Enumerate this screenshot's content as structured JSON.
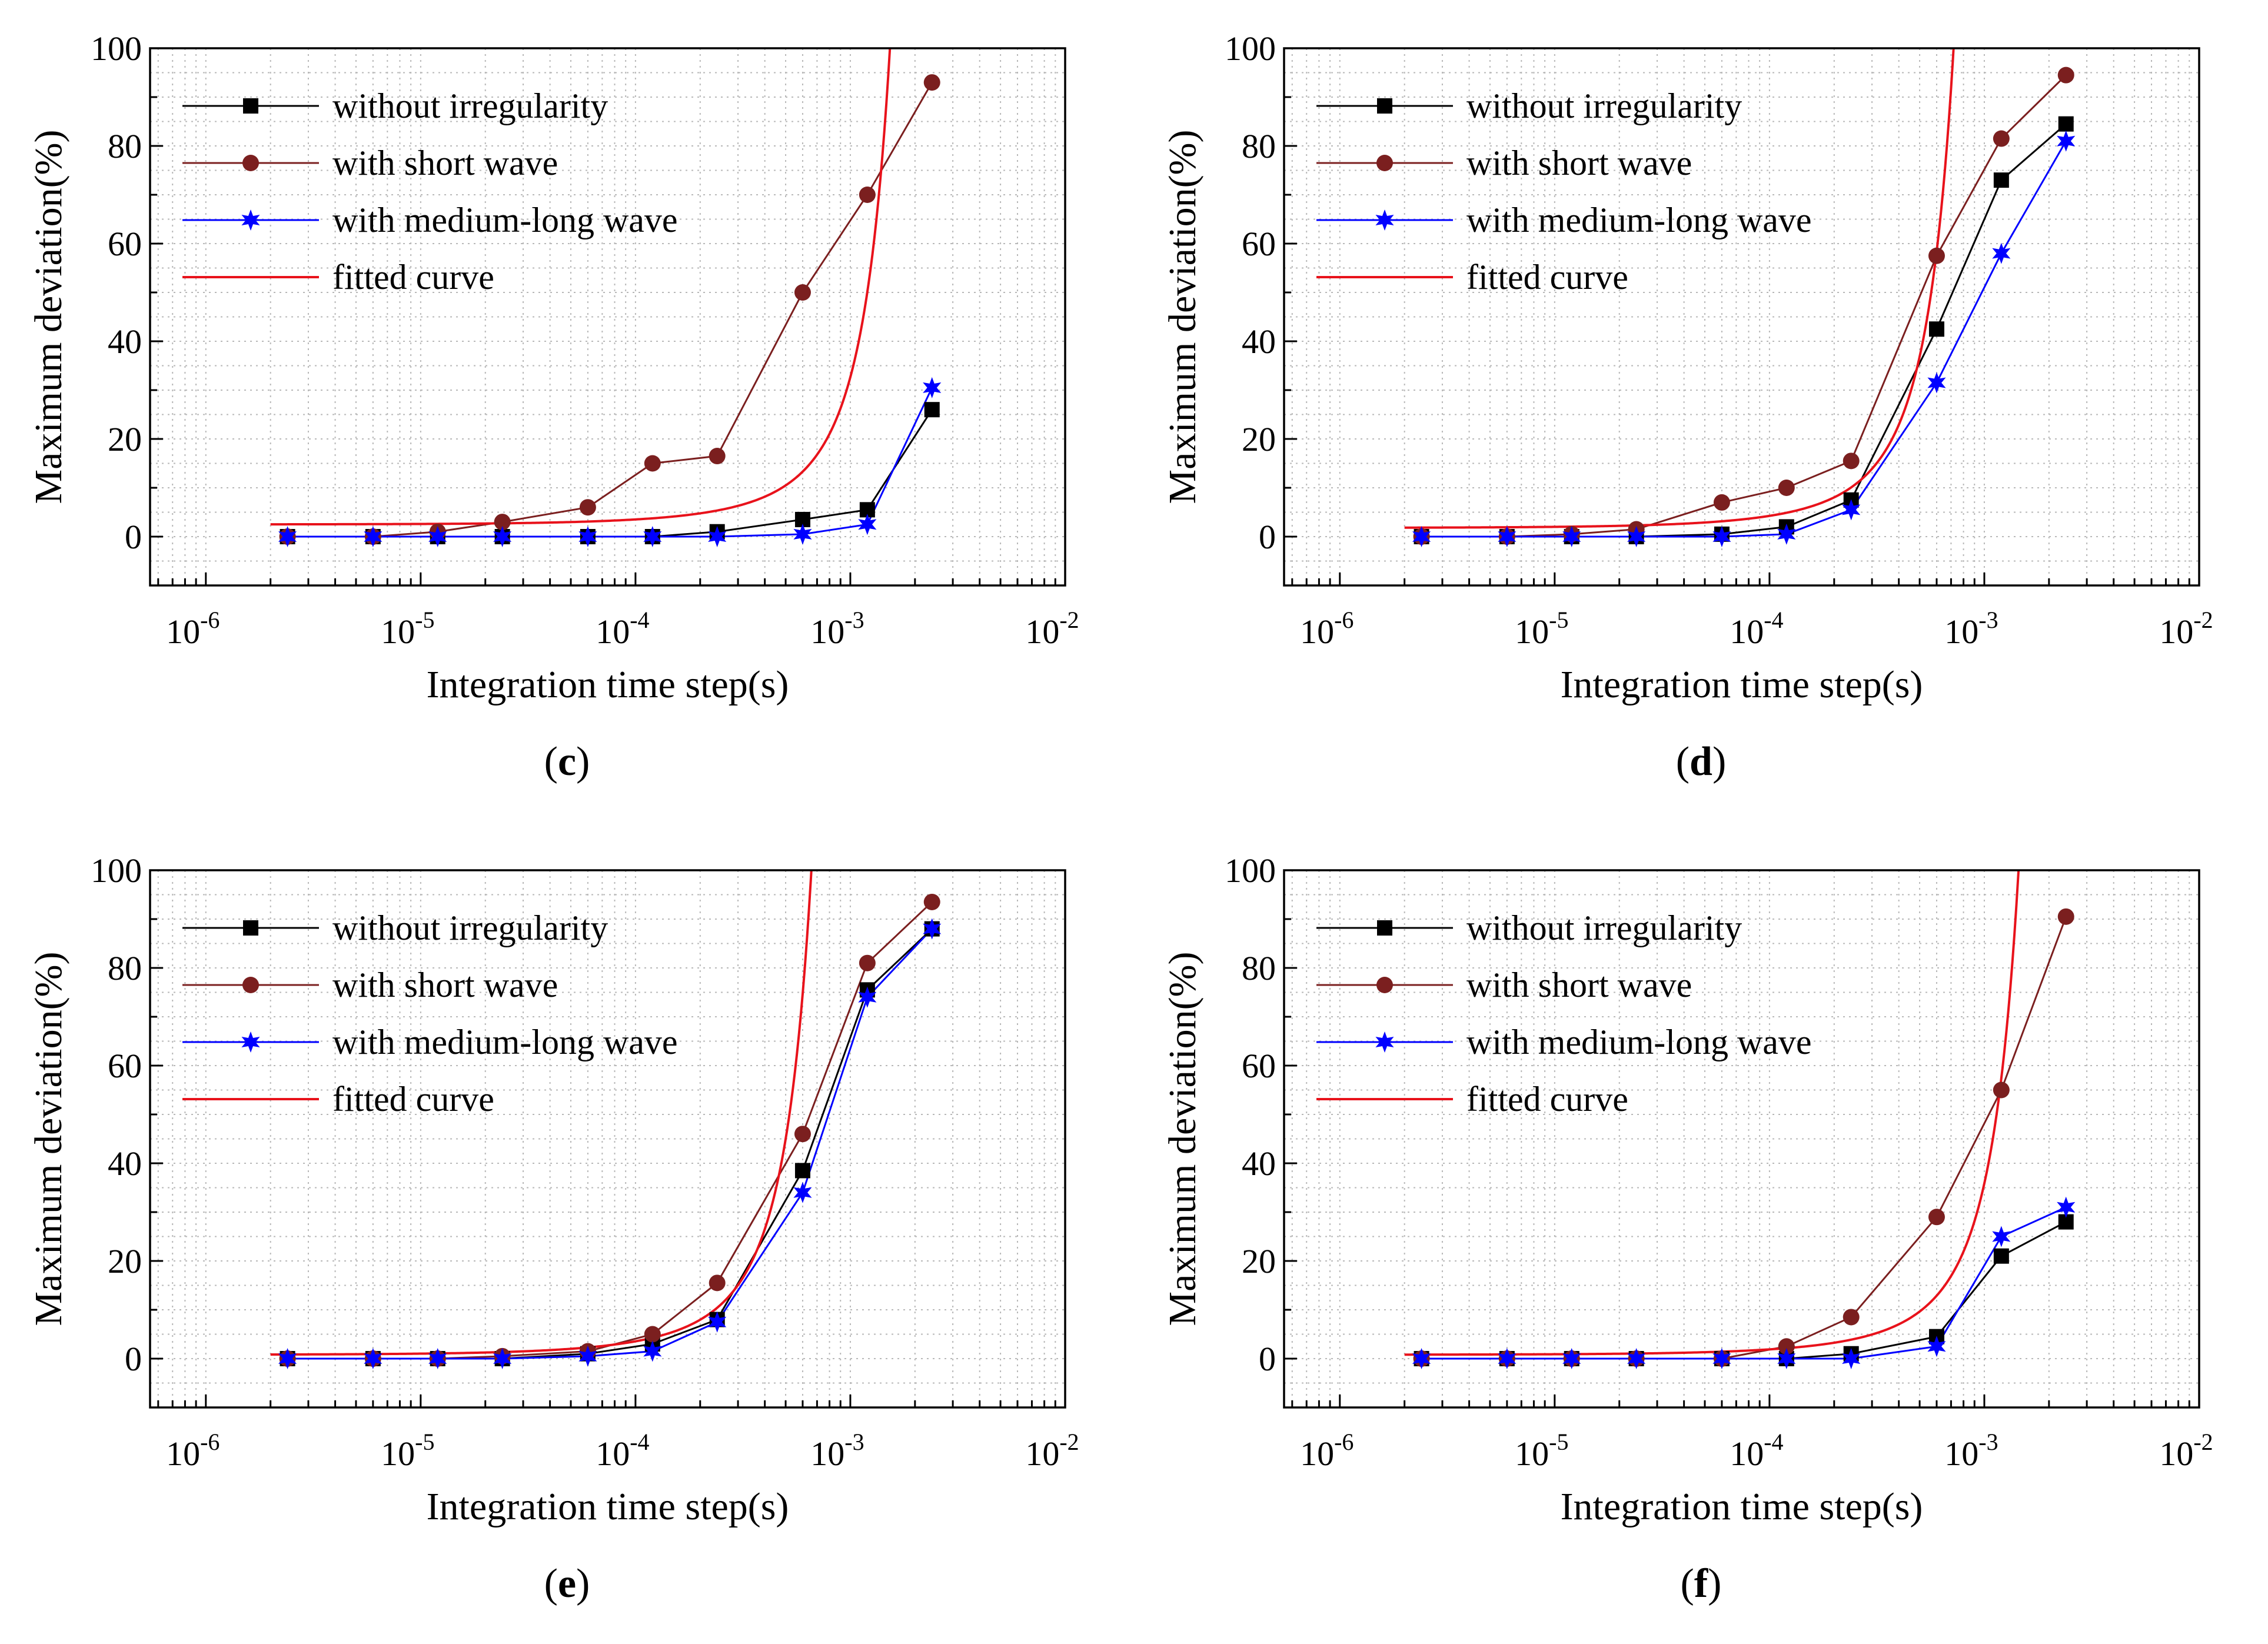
{
  "figure": {
    "panels_order": [
      "c",
      "d",
      "e",
      "f"
    ]
  },
  "chart_data": [
    {
      "id": "c",
      "caption": "c",
      "type": "line",
      "xscale": "log",
      "xlabel": "Integration time step(s)",
      "ylabel": "Maximum deviation(%)",
      "xlim": [
        5.5e-07,
        0.01
      ],
      "ylim": [
        -10,
        100
      ],
      "x_ticks": [
        {
          "base": "10",
          "exp": "-6",
          "value": 1e-06
        },
        {
          "base": "10",
          "exp": "-5",
          "value": 1e-05
        },
        {
          "base": "10",
          "exp": "-4",
          "value": 0.0001
        },
        {
          "base": "10",
          "exp": "-3",
          "value": 0.001
        },
        {
          "base": "10",
          "exp": "-2",
          "value": 0.01
        }
      ],
      "y_ticks": [
        "0",
        "20",
        "40",
        "60",
        "80",
        "100"
      ],
      "legend_position": "top-left",
      "x": [
        2.4e-06,
        6e-06,
        1.2e-05,
        2.4e-05,
        6e-05,
        0.00012,
        0.00024,
        0.0006,
        0.0012,
        0.0024
      ],
      "series": [
        {
          "name": "without irregularity",
          "color": "#000000",
          "marker": "square",
          "values": [
            0,
            0,
            0,
            0,
            0,
            0,
            1,
            3.5,
            5.5,
            26
          ]
        },
        {
          "name": "with short wave",
          "color": "#7b1f1f",
          "marker": "circle",
          "values": [
            0,
            0,
            1,
            3,
            6,
            15,
            16.5,
            50,
            70,
            93
          ]
        },
        {
          "name": "with medium-long wave",
          "color": "#0000ff",
          "marker": "star",
          "values": [
            0,
            0,
            0,
            0,
            0,
            0,
            0,
            0.5,
            2.5,
            30.5
          ]
        },
        {
          "name": "fitted curve",
          "color": "#e8121b",
          "marker": "none",
          "fit": {
            "a": 2.5,
            "b": 0.00049,
            "x_from": 2e-06,
            "x_to": 0.01
          }
        }
      ]
    },
    {
      "id": "d",
      "caption": "d",
      "type": "line",
      "xscale": "log",
      "xlabel": "Integration time step(s)",
      "ylabel": "Maximum deviation(%)",
      "xlim": [
        5.5e-07,
        0.01
      ],
      "ylim": [
        -10,
        100
      ],
      "x_ticks": [
        {
          "base": "10",
          "exp": "-6",
          "value": 1e-06
        },
        {
          "base": "10",
          "exp": "-5",
          "value": 1e-05
        },
        {
          "base": "10",
          "exp": "-4",
          "value": 0.0001
        },
        {
          "base": "10",
          "exp": "-3",
          "value": 0.001
        },
        {
          "base": "10",
          "exp": "-2",
          "value": 0.01
        }
      ],
      "y_ticks": [
        "0",
        "20",
        "40",
        "60",
        "80",
        "100"
      ],
      "legend_position": "top-left",
      "x": [
        2.4e-06,
        6e-06,
        1.2e-05,
        2.4e-05,
        6e-05,
        0.00012,
        0.00024,
        0.0006,
        0.0012,
        0.0024
      ],
      "series": [
        {
          "name": "without irregularity",
          "color": "#000000",
          "marker": "square",
          "values": [
            0,
            0,
            0,
            0,
            0.5,
            2,
            7.5,
            42.5,
            73,
            84.5
          ]
        },
        {
          "name": "with short wave",
          "color": "#7b1f1f",
          "marker": "circle",
          "values": [
            0,
            0,
            0.5,
            1.5,
            7,
            10,
            15.5,
            57.5,
            81.5,
            94.5
          ]
        },
        {
          "name": "with medium-long wave",
          "color": "#0000ff",
          "marker": "star",
          "values": [
            0,
            0,
            0,
            0,
            0,
            0.5,
            5.5,
            31.5,
            58,
            81
          ]
        },
        {
          "name": "fitted curve",
          "color": "#e8121b",
          "marker": "none",
          "fit": {
            "a": 1.8,
            "b": 0.00023,
            "x_from": 2e-06,
            "x_to": 0.01
          }
        }
      ]
    },
    {
      "id": "e",
      "caption": "e",
      "type": "line",
      "xscale": "log",
      "xlabel": "Integration time step(s)",
      "ylabel": "Maximum deviation(%)",
      "xlim": [
        5.5e-07,
        0.01
      ],
      "ylim": [
        -10,
        100
      ],
      "x_ticks": [
        {
          "base": "10",
          "exp": "-6",
          "value": 1e-06
        },
        {
          "base": "10",
          "exp": "-5",
          "value": 1e-05
        },
        {
          "base": "10",
          "exp": "-4",
          "value": 0.0001
        },
        {
          "base": "10",
          "exp": "-3",
          "value": 0.001
        },
        {
          "base": "10",
          "exp": "-2",
          "value": 0.01
        }
      ],
      "y_ticks": [
        "0",
        "20",
        "40",
        "60",
        "80",
        "100"
      ],
      "legend_position": "top-left",
      "x": [
        2.4e-06,
        6e-06,
        1.2e-05,
        2.4e-05,
        6e-05,
        0.00012,
        0.00024,
        0.0006,
        0.0012,
        0.0024
      ],
      "series": [
        {
          "name": "without irregularity",
          "color": "#000000",
          "marker": "square",
          "values": [
            0,
            0,
            0,
            0,
            1,
            3,
            8,
            38.5,
            75.5,
            88
          ]
        },
        {
          "name": "with short wave",
          "color": "#7b1f1f",
          "marker": "circle",
          "values": [
            0,
            0,
            0,
            0.5,
            1.5,
            5,
            15.5,
            46,
            81,
            93.5
          ]
        },
        {
          "name": "with medium-long wave",
          "color": "#0000ff",
          "marker": "star",
          "values": [
            0,
            0,
            0,
            0,
            0.5,
            1.5,
            7.5,
            34,
            74,
            88
          ]
        },
        {
          "name": "fitted curve",
          "color": "#e8121b",
          "marker": "none",
          "fit": {
            "a": 0.8,
            "b": 0.00021,
            "x_from": 2e-06,
            "x_to": 0.01
          }
        }
      ]
    },
    {
      "id": "f",
      "caption": "f",
      "type": "line",
      "xscale": "log",
      "xlabel": "Integration time step(s)",
      "ylabel": "Maximum deviation(%)",
      "xlim": [
        5.5e-07,
        0.01
      ],
      "ylim": [
        -10,
        100
      ],
      "x_ticks": [
        {
          "base": "10",
          "exp": "-6",
          "value": 1e-06
        },
        {
          "base": "10",
          "exp": "-5",
          "value": 1e-05
        },
        {
          "base": "10",
          "exp": "-4",
          "value": 0.0001
        },
        {
          "base": "10",
          "exp": "-3",
          "value": 0.001
        },
        {
          "base": "10",
          "exp": "-2",
          "value": 0.01
        }
      ],
      "y_ticks": [
        "0",
        "20",
        "40",
        "60",
        "80",
        "100"
      ],
      "legend_position": "top-left",
      "x": [
        2.4e-06,
        6e-06,
        1.2e-05,
        2.4e-05,
        6e-05,
        0.00012,
        0.00024,
        0.0006,
        0.0012,
        0.0024
      ],
      "series": [
        {
          "name": "without irregularity",
          "color": "#000000",
          "marker": "square",
          "values": [
            0,
            0,
            0,
            0,
            0,
            0,
            1,
            4.5,
            21,
            28
          ]
        },
        {
          "name": "with short wave",
          "color": "#7b1f1f",
          "marker": "circle",
          "values": [
            0,
            0,
            0,
            0,
            0,
            2.5,
            8.5,
            29,
            55,
            90.5
          ]
        },
        {
          "name": "with medium-long wave",
          "color": "#0000ff",
          "marker": "star",
          "values": [
            0,
            0,
            0,
            0,
            0,
            0,
            0,
            2.5,
            25,
            31
          ]
        },
        {
          "name": "fitted curve",
          "color": "#e8121b",
          "marker": "none",
          "fit": {
            "a": 0.8,
            "b": 0.00046,
            "x_from": 2e-06,
            "x_to": 0.01
          }
        }
      ]
    }
  ]
}
